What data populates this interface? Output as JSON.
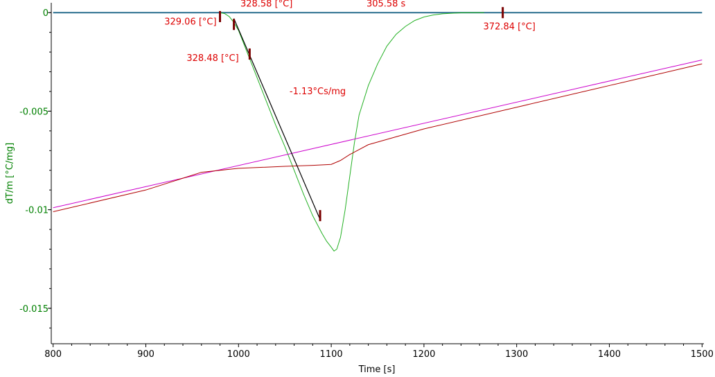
{
  "chart_data": {
    "type": "line",
    "xlabel": "Time [s]",
    "ylabel": "dT/m  [°C/mg]",
    "xlim": [
      798,
      1502
    ],
    "ylim": [
      -0.0168,
      0.0005
    ],
    "xticks": [
      800,
      900,
      1000,
      1100,
      1200,
      1300,
      1400,
      1500
    ],
    "xtick_labels": [
      "800",
      "900",
      "1000",
      "1100",
      "1200",
      "1300",
      "1400",
      "1500"
    ],
    "yticks": [
      0,
      -0.005,
      -0.01,
      -0.015
    ],
    "ytick_labels": [
      "0",
      "-0.005",
      "-0.01",
      "-0.015"
    ],
    "colors": {
      "axis": "#000000",
      "y_axis_text": "#008000",
      "annotation": "#dd0000",
      "marker": "#7a0000",
      "baseline": "#2a6f8f",
      "green_curve": "#22b022",
      "magenta_line": "#cc00cc",
      "darkred_line": "#b00000",
      "tangent": "#000000"
    },
    "series": [
      {
        "key": "baseline",
        "x": [
          800,
          1500
        ],
        "y": [
          0.0,
          0.0
        ]
      },
      {
        "key": "green_curve",
        "x": [
          980,
          985,
          990,
          995,
          1000,
          1010,
          1020,
          1030,
          1040,
          1050,
          1060,
          1070,
          1080,
          1090,
          1095,
          1100,
          1103,
          1106,
          1110,
          1115,
          1120,
          1125,
          1130,
          1140,
          1150,
          1160,
          1170,
          1180,
          1190,
          1200,
          1210,
          1220,
          1230,
          1240,
          1250,
          1260,
          1265
        ],
        "y": [
          0.0,
          -5e-05,
          -0.0002,
          -0.0005,
          -0.0009,
          -0.0021,
          -0.0033,
          -0.0045,
          -0.0057,
          -0.0068,
          -0.008,
          -0.0092,
          -0.0103,
          -0.0112,
          -0.0116,
          -0.0119,
          -0.0121,
          -0.012,
          -0.0114,
          -0.01,
          -0.0083,
          -0.0066,
          -0.0052,
          -0.0037,
          -0.0026,
          -0.0017,
          -0.0011,
          -0.0007,
          -0.0004,
          -0.00022,
          -0.00012,
          -6e-05,
          -3e-05,
          -1e-05,
          0.0,
          0.0,
          0.0
        ]
      },
      {
        "key": "magenta_line",
        "x": [
          800,
          1500
        ],
        "y": [
          -0.0099,
          -0.0024
        ]
      },
      {
        "key": "darkred_line",
        "x": [
          800,
          900,
          960,
          1000,
          1050,
          1080,
          1100,
          1110,
          1120,
          1140,
          1170,
          1200,
          1300,
          1400,
          1500
        ],
        "y": [
          -0.0101,
          -0.009,
          -0.0081,
          -0.0079,
          -0.0078,
          -0.00775,
          -0.0077,
          -0.0075,
          -0.0072,
          -0.0067,
          -0.0063,
          -0.0059,
          -0.0048,
          -0.0037,
          -0.0026
        ]
      },
      {
        "key": "tangent",
        "x": [
          995,
          1088
        ],
        "y": [
          -0.0003,
          -0.0105
        ]
      }
    ],
    "markers": [
      {
        "x": 980,
        "y": -0.0002
      },
      {
        "x": 995,
        "y": -0.0006
      },
      {
        "x": 1012,
        "y": -0.0021
      },
      {
        "x": 1088,
        "y": -0.0103
      },
      {
        "x": 1285,
        "y": 0.0
      }
    ],
    "annotations": [
      {
        "text": "328.58 [°C]",
        "x": 1002,
        "y": 0.0003
      },
      {
        "text": "305.58 s",
        "x": 1138,
        "y": 0.0003
      },
      {
        "text": "329.06 [°C]",
        "x": 920,
        "y": -0.0006
      },
      {
        "text": "372.84 [°C]",
        "x": 1264,
        "y": -0.00085
      },
      {
        "text": "328.48 [°C]",
        "x": 944,
        "y": -0.00245
      },
      {
        "text": "-1.13°Cs/mg",
        "x": 1055,
        "y": -0.00415
      }
    ]
  }
}
